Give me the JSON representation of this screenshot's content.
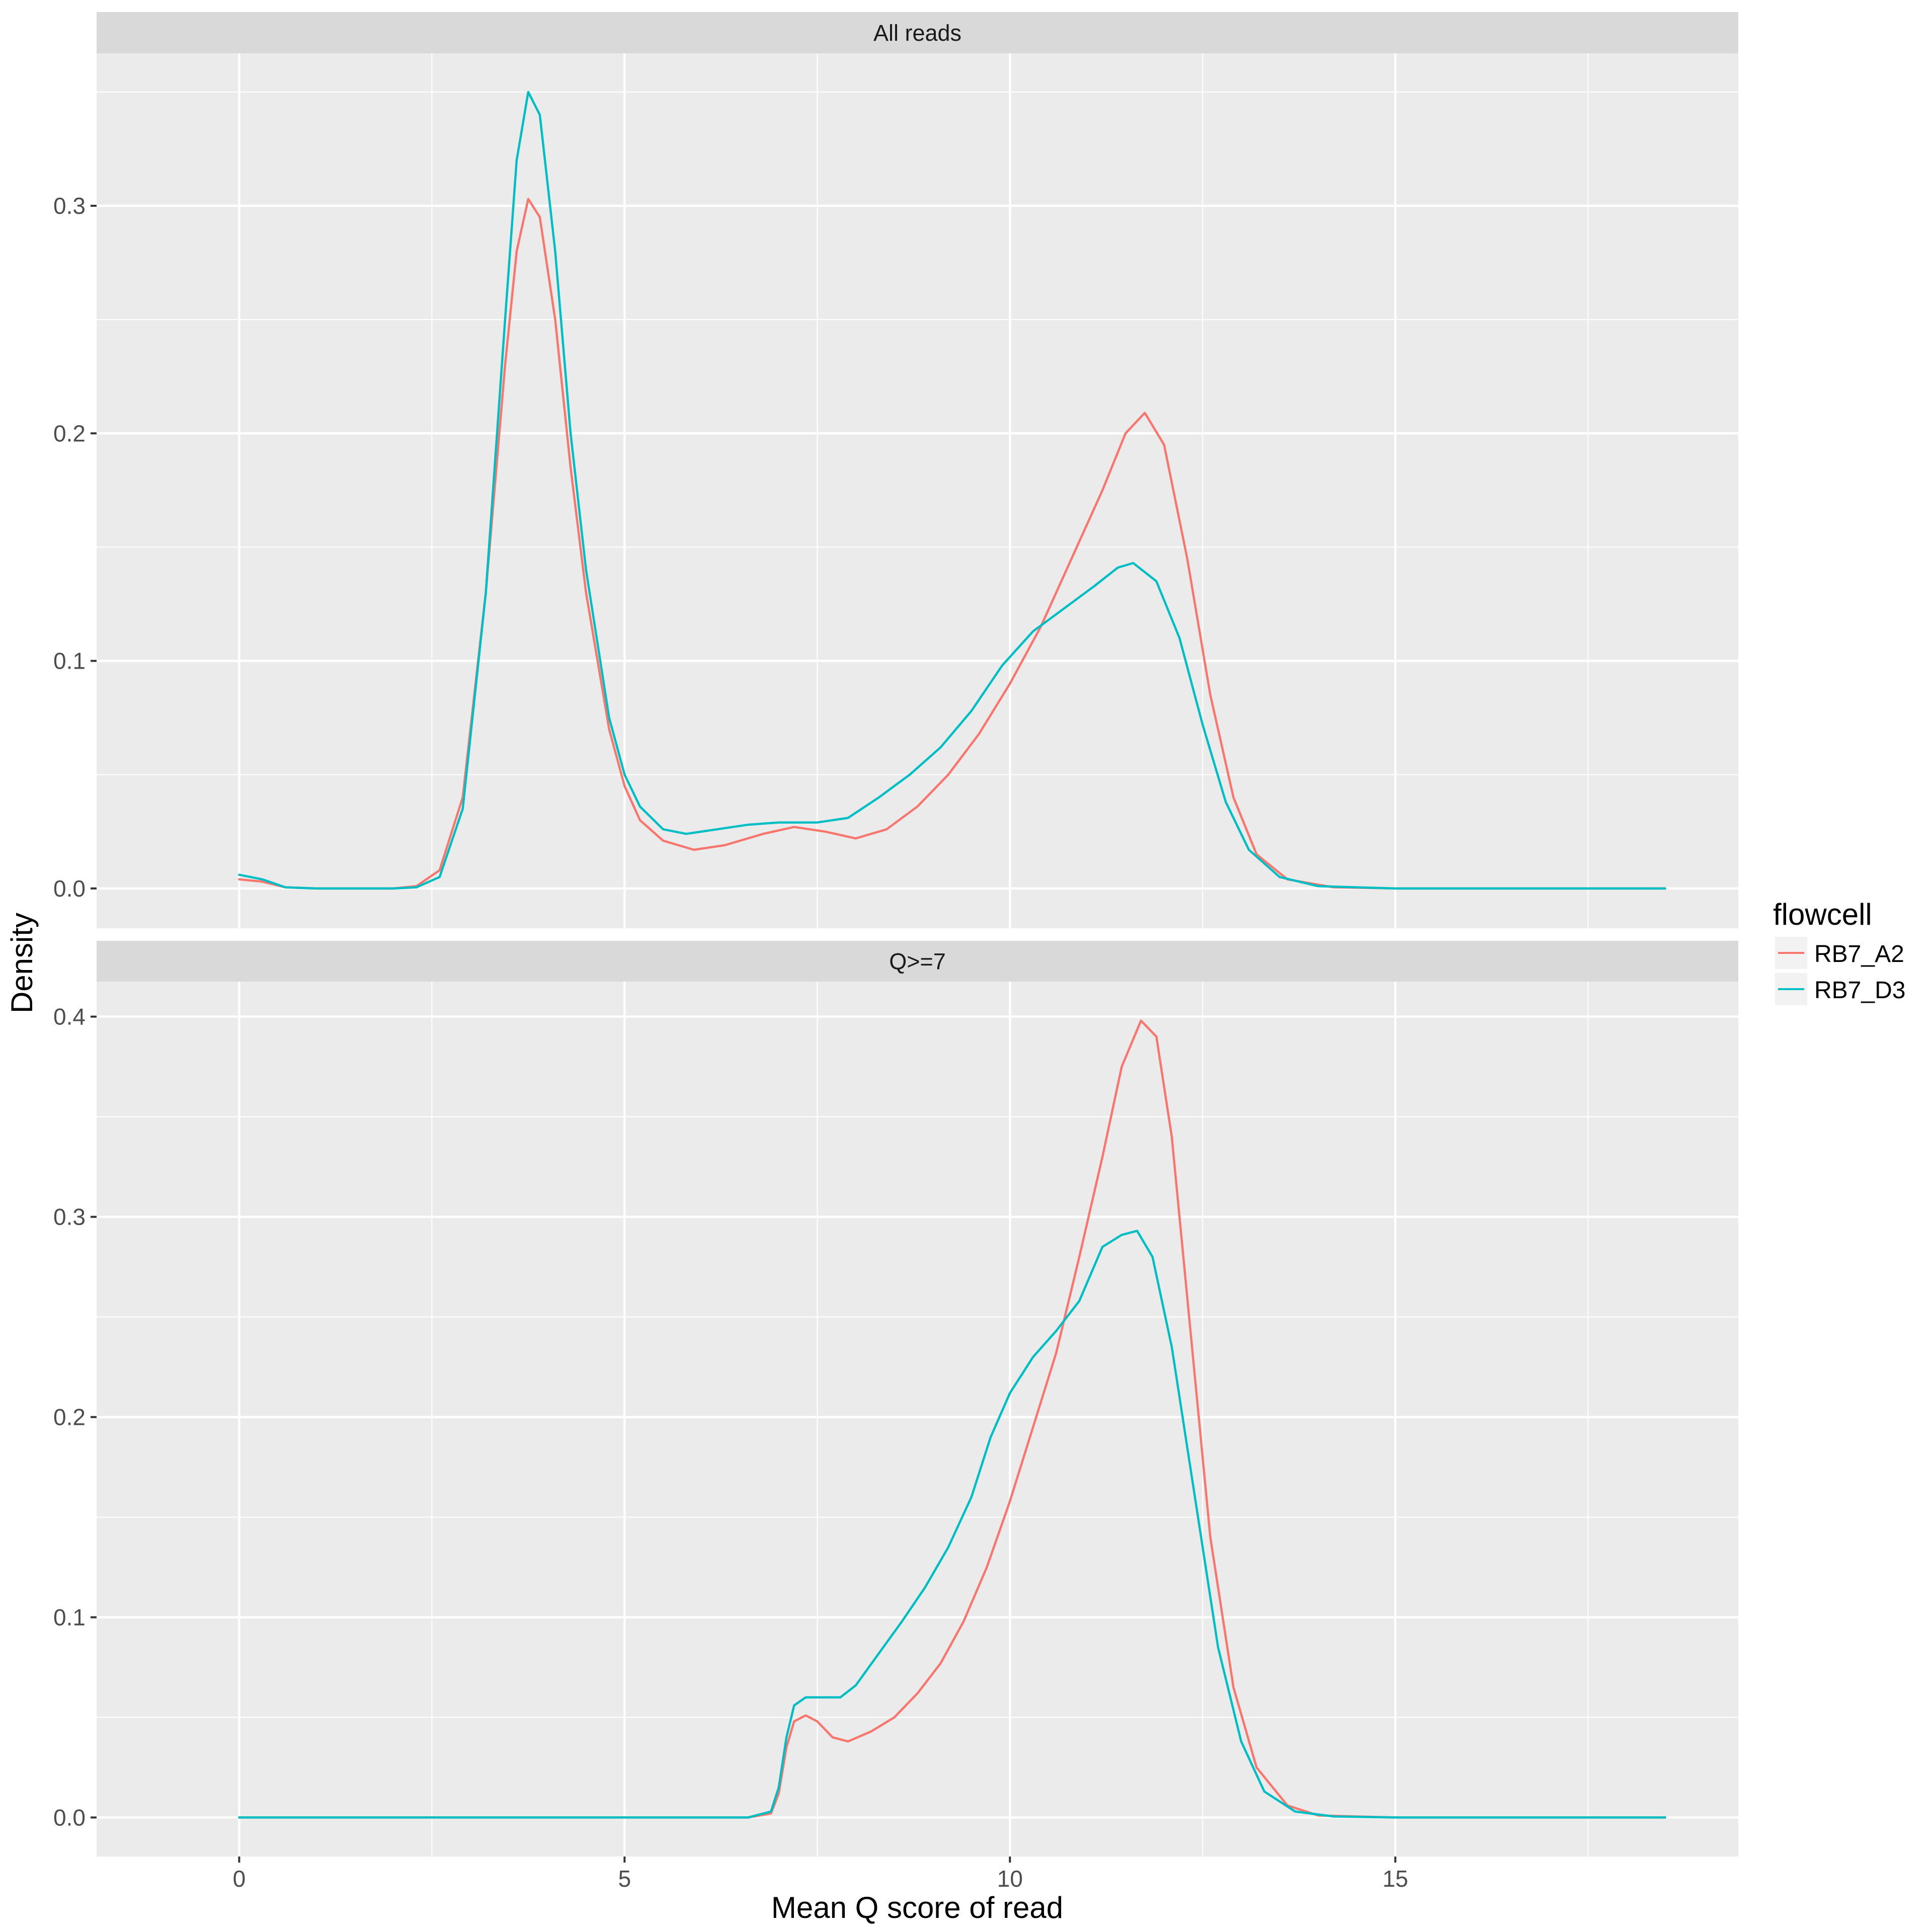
{
  "chart_data": {
    "type": "line",
    "xlabel": "Mean Q score of read",
    "ylabel": "Density",
    "xlim": [
      -1.85,
      19.45
    ],
    "x_ticks": [
      0,
      5,
      10,
      15
    ],
    "x_tick_labels": [
      "0",
      "5",
      "10",
      "15"
    ],
    "grid": true,
    "legend": {
      "title": "flowcell",
      "position": "right",
      "entries": [
        {
          "name": "RB7_A2",
          "color": "#F8766D"
        },
        {
          "name": "RB7_D3",
          "color": "#00BFC4"
        }
      ]
    },
    "panels": [
      {
        "strip": "All reads",
        "ylim": [
          -0.0175,
          0.367
        ],
        "y_ticks": [
          0.0,
          0.1,
          0.2,
          0.3
        ],
        "y_tick_labels": [
          "0.0",
          "0.1",
          "0.2",
          "0.3"
        ],
        "series": [
          {
            "name": "RB7_A2",
            "points": [
              [
                0,
                0.004
              ],
              [
                0.3,
                0.003
              ],
              [
                0.6,
                0.0005
              ],
              [
                1.0,
                0
              ],
              [
                2.0,
                0
              ],
              [
                2.3,
                0.001
              ],
              [
                2.6,
                0.008
              ],
              [
                2.9,
                0.04
              ],
              [
                3.2,
                0.13
              ],
              [
                3.45,
                0.23
              ],
              [
                3.6,
                0.28
              ],
              [
                3.75,
                0.303
              ],
              [
                3.9,
                0.295
              ],
              [
                4.1,
                0.25
              ],
              [
                4.3,
                0.185
              ],
              [
                4.5,
                0.13
              ],
              [
                4.8,
                0.07
              ],
              [
                5.0,
                0.045
              ],
              [
                5.2,
                0.03
              ],
              [
                5.5,
                0.021
              ],
              [
                5.9,
                0.017
              ],
              [
                6.3,
                0.019
              ],
              [
                6.8,
                0.024
              ],
              [
                7.2,
                0.027
              ],
              [
                7.6,
                0.025
              ],
              [
                8.0,
                0.022
              ],
              [
                8.4,
                0.026
              ],
              [
                8.8,
                0.036
              ],
              [
                9.2,
                0.05
              ],
              [
                9.6,
                0.068
              ],
              [
                10.0,
                0.09
              ],
              [
                10.4,
                0.115
              ],
              [
                10.8,
                0.145
              ],
              [
                11.2,
                0.175
              ],
              [
                11.5,
                0.2
              ],
              [
                11.75,
                0.209
              ],
              [
                12.0,
                0.195
              ],
              [
                12.3,
                0.145
              ],
              [
                12.6,
                0.085
              ],
              [
                12.9,
                0.04
              ],
              [
                13.2,
                0.015
              ],
              [
                13.6,
                0.004
              ],
              [
                14.2,
                0.0005
              ],
              [
                15.0,
                0
              ],
              [
                18.5,
                0
              ]
            ]
          },
          {
            "name": "RB7_D3",
            "points": [
              [
                0,
                0.006
              ],
              [
                0.3,
                0.004
              ],
              [
                0.6,
                0.0005
              ],
              [
                1.0,
                0
              ],
              [
                2.0,
                0
              ],
              [
                2.3,
                0.0005
              ],
              [
                2.6,
                0.005
              ],
              [
                2.9,
                0.035
              ],
              [
                3.2,
                0.13
              ],
              [
                3.45,
                0.25
              ],
              [
                3.6,
                0.32
              ],
              [
                3.75,
                0.35
              ],
              [
                3.9,
                0.34
              ],
              [
                4.1,
                0.28
              ],
              [
                4.3,
                0.2
              ],
              [
                4.5,
                0.14
              ],
              [
                4.8,
                0.075
              ],
              [
                5.0,
                0.05
              ],
              [
                5.2,
                0.036
              ],
              [
                5.5,
                0.026
              ],
              [
                5.8,
                0.024
              ],
              [
                6.2,
                0.026
              ],
              [
                6.6,
                0.028
              ],
              [
                7.0,
                0.029
              ],
              [
                7.5,
                0.029
              ],
              [
                7.9,
                0.031
              ],
              [
                8.3,
                0.04
              ],
              [
                8.7,
                0.05
              ],
              [
                9.1,
                0.062
              ],
              [
                9.5,
                0.078
              ],
              [
                9.9,
                0.098
              ],
              [
                10.3,
                0.113
              ],
              [
                10.7,
                0.123
              ],
              [
                11.1,
                0.133
              ],
              [
                11.4,
                0.141
              ],
              [
                11.6,
                0.143
              ],
              [
                11.9,
                0.135
              ],
              [
                12.2,
                0.11
              ],
              [
                12.5,
                0.072
              ],
              [
                12.8,
                0.038
              ],
              [
                13.1,
                0.017
              ],
              [
                13.5,
                0.005
              ],
              [
                14.0,
                0.001
              ],
              [
                15.0,
                0
              ],
              [
                18.5,
                0
              ]
            ]
          }
        ]
      },
      {
        "strip": "Q>=7",
        "ylim": [
          -0.0195,
          0.4175
        ],
        "y_ticks": [
          0.0,
          0.1,
          0.2,
          0.3,
          0.4
        ],
        "y_tick_labels": [
          "0.0",
          "0.1",
          "0.2",
          "0.3",
          "0.4"
        ],
        "series": [
          {
            "name": "RB7_A2",
            "points": [
              [
                0,
                0
              ],
              [
                6.6,
                0
              ],
              [
                6.9,
                0.002
              ],
              [
                7.0,
                0.012
              ],
              [
                7.1,
                0.035
              ],
              [
                7.2,
                0.048
              ],
              [
                7.35,
                0.051
              ],
              [
                7.5,
                0.048
              ],
              [
                7.7,
                0.04
              ],
              [
                7.9,
                0.038
              ],
              [
                8.2,
                0.043
              ],
              [
                8.5,
                0.05
              ],
              [
                8.8,
                0.062
              ],
              [
                9.1,
                0.077
              ],
              [
                9.4,
                0.098
              ],
              [
                9.7,
                0.125
              ],
              [
                10.0,
                0.158
              ],
              [
                10.3,
                0.195
              ],
              [
                10.6,
                0.232
              ],
              [
                10.9,
                0.28
              ],
              [
                11.2,
                0.33
              ],
              [
                11.45,
                0.375
              ],
              [
                11.7,
                0.398
              ],
              [
                11.9,
                0.39
              ],
              [
                12.1,
                0.34
              ],
              [
                12.35,
                0.24
              ],
              [
                12.6,
                0.14
              ],
              [
                12.9,
                0.065
              ],
              [
                13.2,
                0.025
              ],
              [
                13.6,
                0.006
              ],
              [
                14.0,
                0.001
              ],
              [
                15.0,
                0
              ],
              [
                18.5,
                0
              ]
            ]
          },
          {
            "name": "RB7_D3",
            "points": [
              [
                0,
                0
              ],
              [
                6.6,
                0
              ],
              [
                6.9,
                0.003
              ],
              [
                7.0,
                0.015
              ],
              [
                7.1,
                0.04
              ],
              [
                7.2,
                0.056
              ],
              [
                7.35,
                0.06
              ],
              [
                7.6,
                0.06
              ],
              [
                7.8,
                0.06
              ],
              [
                8.0,
                0.066
              ],
              [
                8.3,
                0.082
              ],
              [
                8.6,
                0.098
              ],
              [
                8.9,
                0.115
              ],
              [
                9.2,
                0.135
              ],
              [
                9.5,
                0.16
              ],
              [
                9.75,
                0.19
              ],
              [
                10.0,
                0.212
              ],
              [
                10.3,
                0.23
              ],
              [
                10.6,
                0.243
              ],
              [
                10.9,
                0.258
              ],
              [
                11.2,
                0.285
              ],
              [
                11.45,
                0.291
              ],
              [
                11.65,
                0.293
              ],
              [
                11.85,
                0.28
              ],
              [
                12.1,
                0.235
              ],
              [
                12.4,
                0.16
              ],
              [
                12.7,
                0.085
              ],
              [
                13.0,
                0.038
              ],
              [
                13.3,
                0.013
              ],
              [
                13.7,
                0.003
              ],
              [
                14.2,
                0.0005
              ],
              [
                15.0,
                0
              ],
              [
                18.5,
                0
              ]
            ]
          }
        ]
      }
    ]
  }
}
